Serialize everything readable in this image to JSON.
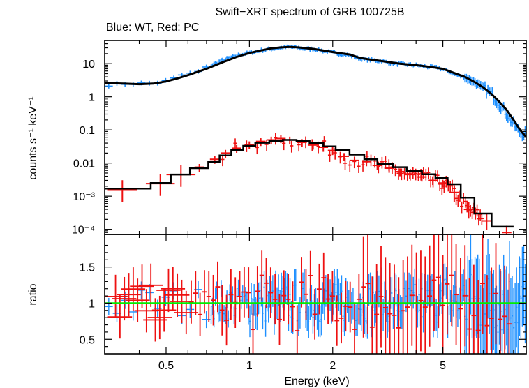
{
  "chart_data": {
    "type": "scatter",
    "title": "Swift−XRT spectrum of GRB 100725B",
    "subtitle": "Blue: WT, Red: PC",
    "xlabel": "Energy (keV)",
    "xscale": "log",
    "xlim": [
      0.3,
      10
    ],
    "xticks": [
      {
        "value": 0.5,
        "label": "0.5"
      },
      {
        "value": 1,
        "label": "1"
      },
      {
        "value": 2,
        "label": "2"
      },
      {
        "value": 5,
        "label": "5"
      }
    ],
    "colors": {
      "wt": "#1e90ff",
      "pc": "#ee1111",
      "model": "#000000",
      "ratio_line": "#00ee00"
    },
    "panels": [
      {
        "name": "spectrum",
        "ylabel": "counts s⁻¹ keV⁻¹",
        "yscale": "log",
        "ylim": [
          7e-05,
          50
        ],
        "yticks": [
          {
            "value": 10,
            "label": "10"
          },
          {
            "value": 1,
            "label": "1"
          },
          {
            "value": 0.1,
            "label": "0.1"
          },
          {
            "value": 0.01,
            "label": "0.01"
          },
          {
            "value": 0.001,
            "label": "10⁻³"
          },
          {
            "value": 0.0001,
            "label": "10⁻⁴"
          }
        ],
        "series": [
          {
            "key": "wt",
            "points": [
              [
                0.32,
                2.3
              ],
              [
                0.36,
                2.5
              ],
              [
                0.41,
                2.5
              ],
              [
                0.46,
                2.6
              ],
              [
                0.52,
                3.2
              ],
              [
                0.58,
                4.8
              ],
              [
                0.64,
                5.2
              ],
              [
                0.7,
                7.5
              ],
              [
                0.77,
                11.5
              ],
              [
                0.85,
                15
              ],
              [
                0.93,
                19
              ],
              [
                1.0,
                21
              ],
              [
                1.1,
                25
              ],
              [
                1.2,
                28
              ],
              [
                1.3,
                30
              ],
              [
                1.4,
                32
              ],
              [
                1.5,
                30
              ],
              [
                1.6,
                28
              ],
              [
                1.75,
                27
              ],
              [
                1.9,
                23
              ],
              [
                2.1,
                20
              ],
              [
                2.3,
                18
              ],
              [
                2.5,
                14
              ],
              [
                2.7,
                13
              ],
              [
                3.0,
                12
              ],
              [
                3.3,
                10
              ],
              [
                3.6,
                9.5
              ],
              [
                4.0,
                9
              ],
              [
                4.4,
                8
              ],
              [
                4.8,
                7.5
              ],
              [
                5.2,
                6
              ],
              [
                5.6,
                4.5
              ],
              [
                6.0,
                3.8
              ],
              [
                6.5,
                2.8
              ],
              [
                7.0,
                1.8
              ],
              [
                7.5,
                1.2
              ],
              [
                8.0,
                0.6
              ],
              [
                8.5,
                0.3
              ],
              [
                9.0,
                0.15
              ],
              [
                9.5,
                0.08
              ]
            ]
          },
          {
            "key": "pc",
            "points": [
              [
                0.35,
                0.0016
              ],
              [
                0.48,
                0.0024
              ],
              [
                0.57,
                0.0045
              ],
              [
                0.66,
                0.0075
              ],
              [
                0.75,
                0.013
              ],
              [
                0.82,
                0.02
              ],
              [
                0.9,
                0.028
              ],
              [
                1.0,
                0.036
              ],
              [
                1.1,
                0.045
              ],
              [
                1.2,
                0.05
              ],
              [
                1.3,
                0.055
              ],
              [
                1.4,
                0.05
              ],
              [
                1.55,
                0.042
              ],
              [
                1.7,
                0.035
              ],
              [
                1.85,
                0.03
              ],
              [
                2.0,
                0.024
              ],
              [
                2.2,
                0.016
              ],
              [
                2.4,
                0.012
              ],
              [
                2.65,
                0.011
              ],
              [
                2.9,
                0.0085
              ],
              [
                3.2,
                0.007
              ],
              [
                3.5,
                0.0055
              ],
              [
                3.8,
                0.0045
              ],
              [
                4.2,
                0.0038
              ],
              [
                4.6,
                0.003
              ],
              [
                5.0,
                0.0025
              ],
              [
                5.5,
                0.0013
              ],
              [
                6.2,
                0.0004
              ],
              [
                7.2,
                0.00018
              ],
              [
                8.5,
                8e-05
              ]
            ]
          }
        ],
        "models": [
          {
            "key": "wt",
            "points": [
              [
                0.3,
                2.6
              ],
              [
                0.35,
                2.5
              ],
              [
                0.4,
                2.4
              ],
              [
                0.45,
                2.5
              ],
              [
                0.5,
                2.9
              ],
              [
                0.55,
                3.6
              ],
              [
                0.6,
                4.5
              ],
              [
                0.7,
                7
              ],
              [
                0.8,
                11
              ],
              [
                0.9,
                16
              ],
              [
                1.0,
                21
              ],
              [
                1.1,
                25
              ],
              [
                1.2,
                29
              ],
              [
                1.3,
                31
              ],
              [
                1.4,
                32
              ],
              [
                1.5,
                31
              ],
              [
                1.7,
                28
              ],
              [
                1.9,
                24
              ],
              [
                2.1,
                21
              ],
              [
                2.3,
                19
              ],
              [
                2.5,
                15
              ],
              [
                2.7,
                13.5
              ],
              [
                3.0,
                12
              ],
              [
                3.5,
                10
              ],
              [
                4.0,
                9
              ],
              [
                4.5,
                8
              ],
              [
                5.0,
                7
              ],
              [
                5.5,
                5.2
              ],
              [
                6.0,
                4
              ],
              [
                6.5,
                2.8
              ],
              [
                7.0,
                1.9
              ],
              [
                7.5,
                1.2
              ],
              [
                8.0,
                0.7
              ],
              [
                8.5,
                0.4
              ],
              [
                9.0,
                0.2
              ],
              [
                9.5,
                0.1
              ],
              [
                10.0,
                0.06
              ]
            ]
          },
          {
            "key": "pc",
            "step": true,
            "edges": [
              0.3,
              0.44,
              0.52,
              0.61,
              0.71,
              0.78,
              0.86,
              0.95,
              1.05,
              1.18,
              1.32,
              1.48,
              1.65,
              1.85,
              2.05,
              2.3,
              2.6,
              2.9,
              3.3,
              3.7,
              4.2,
              4.7,
              5.2,
              5.8,
              6.5,
              7.5,
              9.0
            ],
            "values": [
              0.0017,
              0.0025,
              0.0045,
              0.007,
              0.011,
              0.017,
              0.025,
              0.033,
              0.041,
              0.047,
              0.05,
              0.047,
              0.04,
              0.032,
              0.025,
              0.018,
              0.013,
              0.0095,
              0.0075,
              0.0058,
              0.0046,
              0.0035,
              0.0023,
              0.0009,
              0.0003,
              0.00012
            ]
          }
        ]
      },
      {
        "name": "ratio",
        "ylabel": "ratio",
        "yscale": "linear",
        "ylim": [
          0.3,
          1.95
        ],
        "yticks": [
          {
            "value": 0.5,
            "label": "0.5"
          },
          {
            "value": 1,
            "label": "1"
          },
          {
            "value": 1.5,
            "label": "1.5"
          }
        ],
        "reference_line": 1
      }
    ]
  }
}
